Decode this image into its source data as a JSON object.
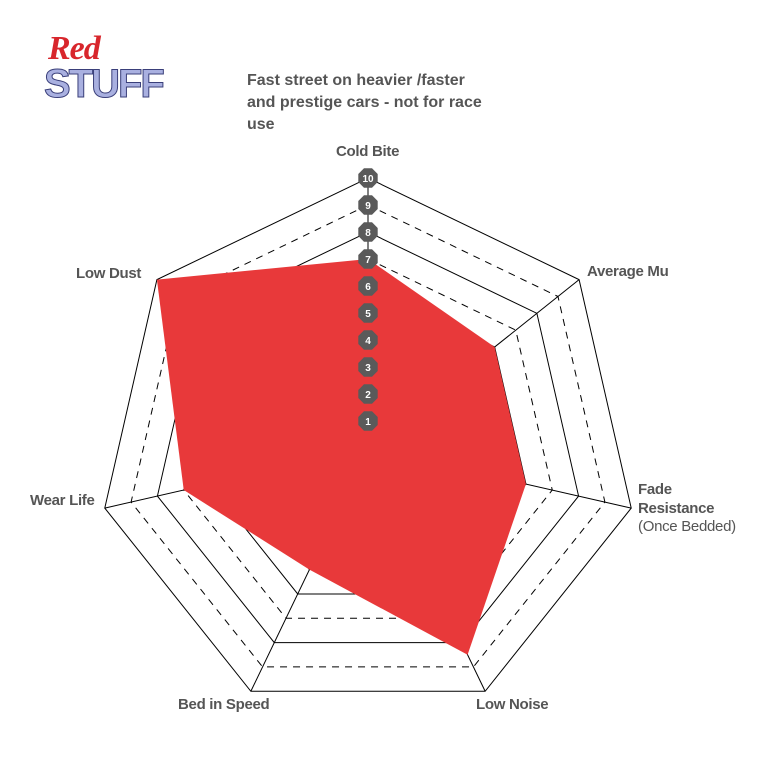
{
  "chart_data": {
    "type": "radar",
    "logo": [
      "Red",
      "STUFF"
    ],
    "title": "Fast street on heavier /faster and prestige cars - not for race use",
    "categories": [
      "Cold Bite",
      "Average Mu",
      "Fade Resistance",
      "Low Noise",
      "Bed in Speed",
      "Wear Life",
      "Low Dust"
    ],
    "annotations": [
      "(Once Bedded)"
    ],
    "values": [
      7,
      6,
      6,
      8.5,
      5,
      7,
      10
    ],
    "color": "#e8393a",
    "rlim": [
      0,
      10
    ],
    "rticks": [
      1,
      2,
      3,
      4,
      5,
      6,
      7,
      8,
      9,
      10
    ]
  }
}
